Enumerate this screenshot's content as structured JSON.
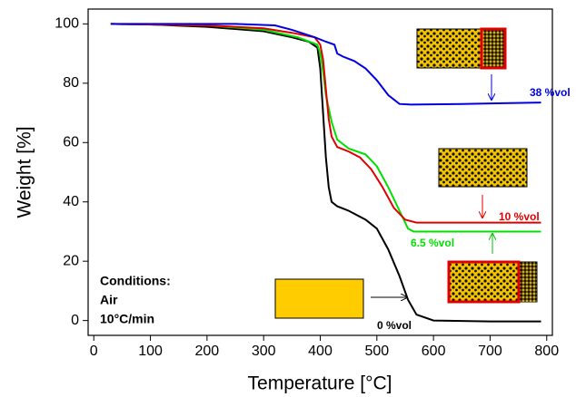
{
  "chart_data": {
    "type": "line",
    "x_label": "Temperature [°C]",
    "y_label": "Weight [%]",
    "xlim": [
      -10,
      810
    ],
    "xticks": [
      0,
      100,
      200,
      300,
      400,
      500,
      600,
      700,
      800
    ],
    "ylim": [
      -5,
      105
    ],
    "yticks": [
      0,
      20,
      40,
      60,
      80,
      100
    ],
    "annotations": [
      "Conditions:",
      "Air",
      "10°C/min"
    ],
    "series": [
      {
        "name": "0 %vol",
        "color": "#000000",
        "x": [
          30,
          100,
          200,
          300,
          350,
          380,
          395,
          400,
          405,
          410,
          415,
          420,
          430,
          450,
          480,
          500,
          520,
          540,
          555,
          570,
          600,
          700,
          790
        ],
        "values": [
          100,
          99.8,
          99,
          97.5,
          95.5,
          94,
          92,
          85,
          70,
          55,
          45,
          40,
          38.5,
          37,
          34,
          31,
          24,
          15,
          7,
          2,
          0,
          -0.3,
          -0.3
        ]
      },
      {
        "name": "6.5 %vol",
        "color": "#00e000",
        "x": [
          30,
          200,
          300,
          360,
          395,
          400,
          405,
          410,
          420,
          430,
          450,
          480,
          500,
          520,
          540,
          555,
          565,
          700,
          790
        ],
        "values": [
          100,
          99.5,
          98,
          95.5,
          93,
          90,
          84,
          76,
          67,
          61,
          58,
          56,
          52,
          45,
          37,
          31,
          30,
          30,
          30
        ]
      },
      {
        "name": "10 %vol",
        "color": "#e00000",
        "x": [
          30,
          200,
          300,
          350,
          390,
          400,
          405,
          410,
          415,
          420,
          430,
          450,
          470,
          490,
          510,
          530,
          550,
          570,
          700,
          790
        ],
        "values": [
          100,
          99.5,
          98.5,
          97,
          95.5,
          93,
          88,
          78,
          68,
          62,
          58.5,
          57,
          55,
          51,
          45,
          38,
          34,
          33,
          33,
          33
        ]
      },
      {
        "name": "38 %vol",
        "color": "#0000e0",
        "x": [
          30,
          250,
          320,
          350,
          390,
          410,
          425,
          430,
          440,
          460,
          480,
          500,
          520,
          540,
          560,
          650,
          700,
          790
        ],
        "values": [
          100,
          100,
          99.5,
          98,
          95.5,
          94,
          93,
          90,
          89,
          87.5,
          85,
          81,
          76,
          73,
          72.8,
          73,
          73.2,
          73.5
        ]
      }
    ]
  }
}
